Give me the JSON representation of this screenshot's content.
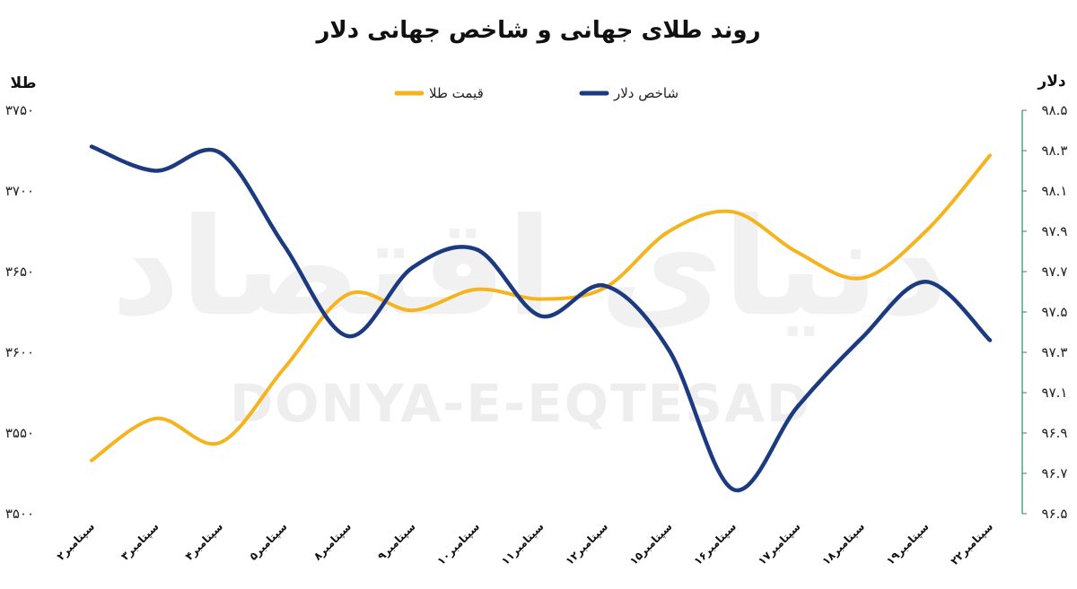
{
  "chart_data": {
    "type": "line",
    "title": "روند طلای جهانی و شاخص جهانی دلار",
    "left_axis_label": "طلا",
    "right_axis_label": "دلار",
    "categories": [
      "۲سپتامبر",
      "۳سپتامبر",
      "۴سپتامبر",
      "۵سپتامبر",
      "۸سپتامبر",
      "۹سپتامبر",
      "۱۰سپتامبر",
      "۱۱سپتامبر",
      "۱۲سپتامبر",
      "۱۵سپتامبر",
      "۱۶سپتامبر",
      "۱۷سپتامبر",
      "۱۸سپتامبر",
      "۱۹سپتامبر",
      "۲۲سپتامبر"
    ],
    "left_axis": {
      "ylim": [
        3500,
        3750
      ],
      "ticks": [
        3500,
        3550,
        3600,
        3650,
        3700,
        3750
      ],
      "tick_labels": [
        "۳۵۰۰",
        "۳۵۵۰",
        "۳۶۰۰",
        "۳۶۵۰",
        "۳۷۰۰",
        "۳۷۵۰"
      ]
    },
    "right_axis": {
      "ylim": [
        96.5,
        98.5
      ],
      "ticks": [
        96.5,
        96.7,
        96.9,
        97.1,
        97.3,
        97.5,
        97.7,
        97.9,
        98.1,
        98.3,
        98.5
      ],
      "tick_labels": [
        "۹۶.۵",
        "۹۶.۷",
        "۹۶.۹",
        "۹۷.۱",
        "۹۷.۳",
        "۹۷.۵",
        "۹۷.۷",
        "۹۷.۹",
        "۹۸.۱",
        "۹۸.۳",
        "۹۸.۵"
      ]
    },
    "series": [
      {
        "name": "قیمت طلا",
        "axis": "left",
        "color": "#F5B41E",
        "values": [
          3533,
          3559,
          3544,
          3590,
          3636,
          3626,
          3639,
          3633,
          3640,
          3675,
          3687,
          3662,
          3646,
          3675,
          3722
        ]
      },
      {
        "name": "شاخص دلار",
        "axis": "right",
        "color": "#1B3A80",
        "values": [
          98.32,
          98.2,
          98.29,
          97.83,
          97.38,
          97.72,
          97.81,
          97.48,
          97.63,
          97.31,
          96.62,
          97.03,
          97.37,
          97.65,
          97.36
        ]
      }
    ],
    "legend_position": "top-center",
    "grid": false
  },
  "watermark": {
    "text": "DONYA-E-EQTESAD",
    "logo_text": "دنیای اقتصاد"
  }
}
